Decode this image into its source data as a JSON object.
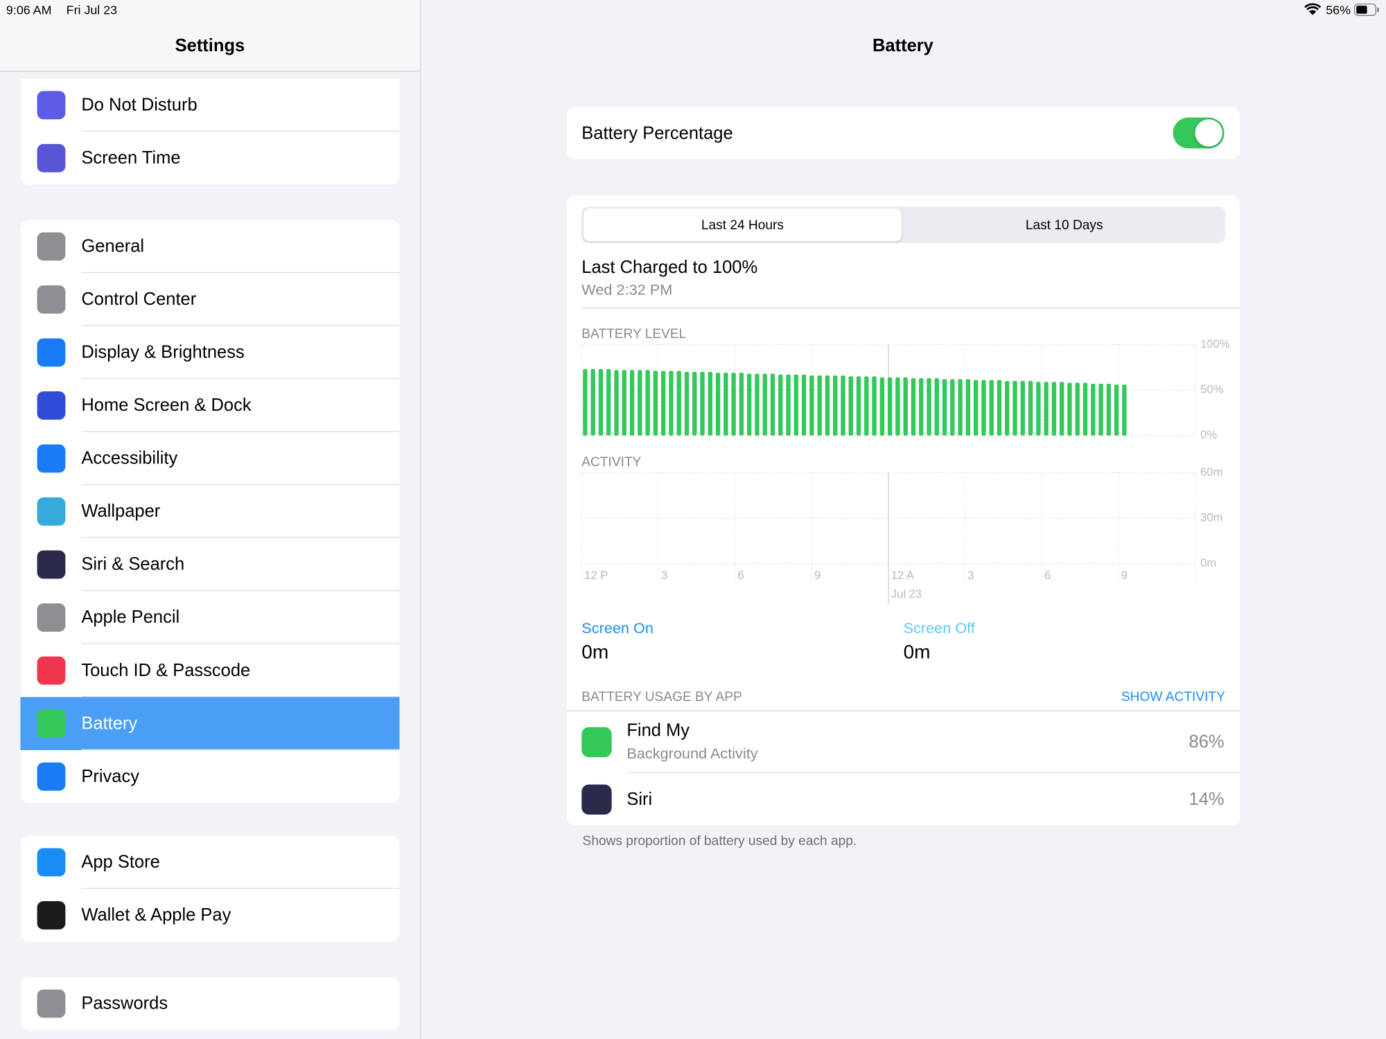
{
  "status_bar": {
    "time": "9:06 AM",
    "date": "Fri Jul 23",
    "battery": "56%"
  },
  "sidebar": {
    "title": "Settings",
    "groups": [
      [
        {
          "label": "Do Not Disturb",
          "icon_color": "#5e5ce6"
        },
        {
          "label": "Screen Time",
          "icon_color": "#5856d6"
        }
      ],
      [
        {
          "label": "General",
          "icon_color": "#8e8e93"
        },
        {
          "label": "Control Center",
          "icon_color": "#8e8e93"
        },
        {
          "label": "Display & Brightness",
          "icon_color": "#1a7cf5"
        },
        {
          "label": "Home Screen & Dock",
          "icon_color": "#2f4bd8"
        },
        {
          "label": "Accessibility",
          "icon_color": "#1a7cf5"
        },
        {
          "label": "Wallpaper",
          "icon_color": "#35aadc"
        },
        {
          "label": "Siri & Search",
          "icon_color": "#2a2a4a"
        },
        {
          "label": "Apple Pencil",
          "icon_color": "#8e8e93"
        },
        {
          "label": "Touch ID & Passcode",
          "icon_color": "#f0364f"
        },
        {
          "label": "Battery",
          "icon_color": "#34c759",
          "selected": true
        },
        {
          "label": "Privacy",
          "icon_color": "#1a7cf5"
        }
      ],
      [
        {
          "label": "App Store",
          "icon_color": "#1a8cf5"
        },
        {
          "label": "Wallet & Apple Pay",
          "icon_color": "#1c1c1e"
        }
      ],
      [
        {
          "label": "Passwords",
          "icon_color": "#8e8e93"
        }
      ]
    ]
  },
  "detail": {
    "title": "Battery",
    "battery_percentage": {
      "label": "Battery Percentage",
      "on": true
    },
    "segments": [
      {
        "label": "Last 24 Hours",
        "selected": true
      },
      {
        "label": "Last 10 Days",
        "selected": false
      }
    ],
    "last_charged": {
      "title": "Last Charged to 100%",
      "time": "Wed 2:32 PM"
    },
    "screen_on": {
      "label": "Screen On",
      "value": "0m"
    },
    "screen_off": {
      "label": "Screen Off",
      "value": "0m"
    },
    "usage": {
      "header": "BATTERY USAGE BY APP",
      "action": "SHOW ACTIVITY",
      "apps": [
        {
          "name": "Find My",
          "detail": "Background Activity",
          "percent": "86%",
          "icon_color": "#34c759"
        },
        {
          "name": "Siri",
          "percent": "14%",
          "icon_color": "#2a2a4a"
        }
      ],
      "footnote": "Shows proportion of battery used by each app."
    }
  },
  "chart_data": [
    {
      "type": "bar",
      "title": "BATTERY LEVEL",
      "color": "#32c85a",
      "ylim": [
        0,
        100
      ],
      "yticks": [
        {
          "value": 0,
          "label": "0%"
        },
        {
          "value": 50,
          "label": "50%"
        },
        {
          "value": 100,
          "label": "100%"
        }
      ],
      "grid": true,
      "values": [
        73,
        73,
        73,
        73,
        72,
        72,
        72,
        72,
        72,
        71,
        71,
        71,
        71,
        70,
        70,
        70,
        70,
        69,
        69,
        69,
        69,
        68,
        68,
        68,
        68,
        67,
        67,
        67,
        67,
        66,
        66,
        66,
        66,
        66,
        65,
        65,
        65,
        65,
        64,
        64,
        64,
        64,
        63,
        63,
        63,
        63,
        62,
        62,
        62,
        62,
        61,
        61,
        61,
        61,
        60,
        60,
        60,
        60,
        59,
        59,
        59,
        59,
        58,
        58,
        58,
        57,
        57,
        57,
        56,
        56
      ]
    },
    {
      "type": "bar",
      "title": "ACTIVITY",
      "ylim": [
        0,
        60
      ],
      "yticks": [
        {
          "value": 0,
          "label": "0m"
        },
        {
          "value": 30,
          "label": "30m"
        },
        {
          "value": 60,
          "label": "60m"
        }
      ],
      "grid": true,
      "categories": [
        "12 P",
        "3",
        "6",
        "9",
        "12 A",
        "3",
        "6",
        "9"
      ],
      "date_label": "Jul 23"
    }
  ]
}
